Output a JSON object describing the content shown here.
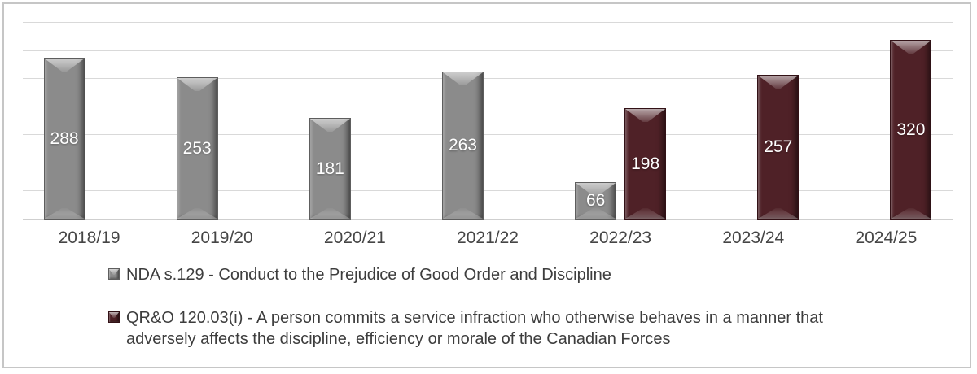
{
  "chart": {
    "frame_border_color": "#c6c6c6",
    "background": "#ffffff",
    "gridline_color": "#d9d9d9",
    "axis_text_color": "#454545",
    "legend_text_color": "#3d3d3d",
    "data_label_color": "#ffffff"
  },
  "chart_data": {
    "type": "bar",
    "title": "",
    "xlabel": "",
    "ylabel": "",
    "categories": [
      "2018/19",
      "2019/20",
      "2020/21",
      "2021/22",
      "2022/23",
      "2023/24",
      "2024/25"
    ],
    "series": [
      {
        "name": "NDA s.129 - Conduct to the Prejudice of Good Order and Discipline",
        "color": "#8b8b8b",
        "border_color": "#5e5e5e",
        "values": [
          288,
          253,
          181,
          263,
          66,
          null,
          null
        ]
      },
      {
        "name": "QR&O 120.03(i) - A person commits a service infraction who otherwise behaves in a manner that adversely affects the discipline, efficiency or morale of the Canadian Forces",
        "color": "#4f2127",
        "border_color": "#321116",
        "values": [
          null,
          null,
          null,
          null,
          198,
          257,
          320
        ]
      }
    ],
    "data_labels": true,
    "ylim": [
      0,
      350
    ],
    "gridline_step": 50,
    "grid": true,
    "y_axis_labels_visible": false,
    "legend_position": "bottom-left"
  }
}
